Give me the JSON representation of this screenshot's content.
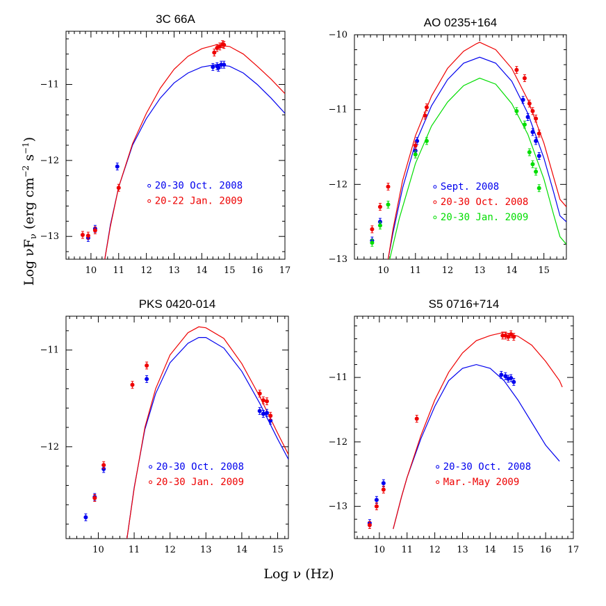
{
  "colors": {
    "blue": "#0000ee",
    "red": "#ee0000",
    "green": "#00dd00"
  },
  "figure": {
    "xlabel_parts": [
      "Log ",
      "ν",
      " (Hz)"
    ],
    "ylabel_parts": [
      "Log ",
      "ν",
      "F",
      "ν",
      " (erg cm",
      "−2",
      " s",
      "−1",
      ")"
    ]
  },
  "chart_data": [
    {
      "type": "scatter",
      "title": "3C 66A",
      "xlim": [
        9.1,
        17
      ],
      "ylim": [
        -13.3,
        -10.3
      ],
      "xticks": [
        10,
        11,
        12,
        13,
        14,
        15,
        16,
        17
      ],
      "yticks": [
        -13,
        -12,
        -11
      ],
      "legend": [
        {
          "label": "20-30 Oct. 2008",
          "color": "blue"
        },
        {
          "label": "20-22 Jan. 2009",
          "color": "red"
        }
      ],
      "series": [
        {
          "color": "blue",
          "points": [
            [
              9.9,
              -13.02
            ],
            [
              10.15,
              -12.9
            ],
            [
              10.95,
              -12.08
            ],
            [
              14.4,
              -10.77
            ],
            [
              14.55,
              -10.76
            ],
            [
              14.6,
              -10.78
            ],
            [
              14.7,
              -10.74
            ],
            [
              14.8,
              -10.74
            ]
          ]
        },
        {
          "color": "red",
          "points": [
            [
              9.7,
              -12.98
            ],
            [
              9.9,
              -12.99
            ],
            [
              10.15,
              -12.92
            ],
            [
              11.0,
              -12.36
            ],
            [
              14.45,
              -10.58
            ],
            [
              14.55,
              -10.52
            ],
            [
              14.65,
              -10.5
            ],
            [
              14.75,
              -10.47
            ],
            [
              14.8,
              -10.48
            ]
          ]
        }
      ],
      "models": [
        {
          "color": "blue",
          "points": [
            [
              10.5,
              -13.3
            ],
            [
              10.7,
              -12.85
            ],
            [
              11.0,
              -12.35
            ],
            [
              11.5,
              -11.8
            ],
            [
              12.0,
              -11.45
            ],
            [
              12.5,
              -11.18
            ],
            [
              13.0,
              -10.98
            ],
            [
              13.5,
              -10.85
            ],
            [
              14.0,
              -10.77
            ],
            [
              14.5,
              -10.74
            ],
            [
              15.0,
              -10.76
            ],
            [
              15.5,
              -10.85
            ],
            [
              16.0,
              -11.0
            ],
            [
              16.5,
              -11.18
            ],
            [
              17.0,
              -11.38
            ]
          ]
        },
        {
          "color": "red",
          "points": [
            [
              10.5,
              -13.3
            ],
            [
              10.7,
              -12.87
            ],
            [
              11.0,
              -12.35
            ],
            [
              11.5,
              -11.78
            ],
            [
              12.0,
              -11.38
            ],
            [
              12.5,
              -11.05
            ],
            [
              13.0,
              -10.8
            ],
            [
              13.5,
              -10.63
            ],
            [
              14.0,
              -10.53
            ],
            [
              14.5,
              -10.48
            ],
            [
              15.0,
              -10.5
            ],
            [
              15.5,
              -10.6
            ],
            [
              16.0,
              -10.76
            ],
            [
              16.5,
              -10.93
            ],
            [
              17.0,
              -11.12
            ]
          ]
        }
      ]
    },
    {
      "type": "scatter",
      "title": "AO 0235+164",
      "xlim": [
        9.1,
        15.7
      ],
      "ylim": [
        -13,
        -10
      ],
      "xticks": [
        10,
        11,
        12,
        13,
        14,
        15
      ],
      "yticks": [
        -13,
        -12,
        -11,
        -10
      ],
      "legend": [
        {
          "label": "Sept. 2008",
          "color": "blue"
        },
        {
          "label": "20-30 Oct. 2008",
          "color": "red"
        },
        {
          "label": "20-30 Jan. 2009",
          "color": "green"
        }
      ],
      "series": [
        {
          "color": "blue",
          "points": [
            [
              9.65,
              -12.75
            ],
            [
              9.9,
              -12.5
            ],
            [
              11.0,
              -11.55
            ],
            [
              11.05,
              -11.42
            ],
            [
              14.35,
              -10.87
            ],
            [
              14.5,
              -11.1
            ],
            [
              14.65,
              -11.3
            ],
            [
              14.75,
              -11.42
            ],
            [
              14.85,
              -11.62
            ]
          ]
        },
        {
          "color": "red",
          "points": [
            [
              9.65,
              -12.6
            ],
            [
              9.9,
              -12.3
            ],
            [
              10.15,
              -12.03
            ],
            [
              11.0,
              -11.48
            ],
            [
              11.3,
              -11.08
            ],
            [
              11.35,
              -10.97
            ],
            [
              14.15,
              -10.47
            ],
            [
              14.4,
              -10.58
            ],
            [
              14.55,
              -10.92
            ],
            [
              14.65,
              -11.02
            ],
            [
              14.75,
              -11.12
            ],
            [
              14.85,
              -11.32
            ]
          ]
        },
        {
          "color": "green",
          "points": [
            [
              9.65,
              -12.78
            ],
            [
              9.9,
              -12.55
            ],
            [
              10.15,
              -12.27
            ],
            [
              11.0,
              -11.6
            ],
            [
              11.35,
              -11.42
            ],
            [
              14.15,
              -11.02
            ],
            [
              14.4,
              -11.2
            ],
            [
              14.55,
              -11.57
            ],
            [
              14.65,
              -11.73
            ],
            [
              14.75,
              -11.83
            ],
            [
              14.85,
              -12.05
            ]
          ]
        }
      ],
      "models": [
        {
          "color": "blue",
          "points": [
            [
              10.15,
              -13.0
            ],
            [
              10.3,
              -12.65
            ],
            [
              10.6,
              -12.05
            ],
            [
              11.0,
              -11.45
            ],
            [
              11.5,
              -10.95
            ],
            [
              12.0,
              -10.6
            ],
            [
              12.5,
              -10.38
            ],
            [
              13.0,
              -10.3
            ],
            [
              13.5,
              -10.38
            ],
            [
              14.0,
              -10.62
            ],
            [
              14.5,
              -11.05
            ],
            [
              15.0,
              -11.65
            ],
            [
              15.3,
              -12.1
            ],
            [
              15.5,
              -12.42
            ],
            [
              15.7,
              -12.5
            ]
          ]
        },
        {
          "color": "red",
          "points": [
            [
              10.15,
              -13.0
            ],
            [
              10.3,
              -12.6
            ],
            [
              10.6,
              -11.95
            ],
            [
              11.0,
              -11.35
            ],
            [
              11.5,
              -10.82
            ],
            [
              12.0,
              -10.45
            ],
            [
              12.5,
              -10.22
            ],
            [
              12.9,
              -10.12
            ],
            [
              13.0,
              -10.1
            ],
            [
              13.5,
              -10.2
            ],
            [
              14.0,
              -10.45
            ],
            [
              14.5,
              -10.87
            ],
            [
              15.0,
              -11.45
            ],
            [
              15.3,
              -11.9
            ],
            [
              15.5,
              -12.2
            ],
            [
              15.7,
              -12.3
            ]
          ]
        },
        {
          "color": "green",
          "points": [
            [
              10.2,
              -13.0
            ],
            [
              10.5,
              -12.45
            ],
            [
              11.0,
              -11.72
            ],
            [
              11.5,
              -11.22
            ],
            [
              12.0,
              -10.9
            ],
            [
              12.5,
              -10.68
            ],
            [
              13.0,
              -10.58
            ],
            [
              13.5,
              -10.66
            ],
            [
              14.0,
              -10.92
            ],
            [
              14.5,
              -11.33
            ],
            [
              15.0,
              -11.93
            ],
            [
              15.3,
              -12.4
            ],
            [
              15.5,
              -12.7
            ],
            [
              15.7,
              -12.8
            ]
          ]
        }
      ]
    },
    {
      "type": "scatter",
      "title": "PKS 0420-014",
      "xlim": [
        9.1,
        15.3
      ],
      "ylim": [
        -12.95,
        -10.65
      ],
      "xticks": [
        10,
        11,
        12,
        13,
        14,
        15
      ],
      "yticks": [
        -12,
        -11
      ],
      "legend": [
        {
          "label": "20-30 Oct. 2008",
          "color": "blue"
        },
        {
          "label": "20-30 Jan. 2009",
          "color": "red"
        }
      ],
      "series": [
        {
          "color": "blue",
          "points": [
            [
              9.65,
              -12.73
            ],
            [
              9.9,
              -12.52
            ],
            [
              10.15,
              -12.23
            ],
            [
              11.35,
              -11.3
            ],
            [
              14.5,
              -11.63
            ],
            [
              14.6,
              -11.66
            ],
            [
              14.7,
              -11.65
            ],
            [
              14.8,
              -11.73
            ]
          ]
        },
        {
          "color": "red",
          "points": [
            [
              9.9,
              -12.53
            ],
            [
              10.15,
              -12.19
            ],
            [
              10.95,
              -11.36
            ],
            [
              11.35,
              -11.16
            ],
            [
              14.5,
              -11.45
            ],
            [
              14.6,
              -11.52
            ],
            [
              14.7,
              -11.53
            ],
            [
              14.8,
              -11.68
            ]
          ]
        }
      ],
      "models": [
        {
          "color": "blue",
          "points": [
            [
              10.8,
              -12.95
            ],
            [
              11.0,
              -12.42
            ],
            [
              11.3,
              -11.82
            ],
            [
              11.6,
              -11.45
            ],
            [
              12.0,
              -11.13
            ],
            [
              12.5,
              -10.93
            ],
            [
              12.8,
              -10.87
            ],
            [
              13.0,
              -10.87
            ],
            [
              13.5,
              -10.98
            ],
            [
              14.0,
              -11.22
            ],
            [
              14.5,
              -11.55
            ],
            [
              15.0,
              -11.92
            ],
            [
              15.3,
              -12.13
            ]
          ]
        },
        {
          "color": "red",
          "points": [
            [
              10.8,
              -12.95
            ],
            [
              11.0,
              -12.43
            ],
            [
              11.3,
              -11.8
            ],
            [
              11.6,
              -11.4
            ],
            [
              12.0,
              -11.05
            ],
            [
              12.5,
              -10.82
            ],
            [
              12.8,
              -10.76
            ],
            [
              13.0,
              -10.77
            ],
            [
              13.5,
              -10.88
            ],
            [
              14.0,
              -11.14
            ],
            [
              14.5,
              -11.48
            ],
            [
              15.0,
              -11.86
            ],
            [
              15.3,
              -12.08
            ]
          ]
        }
      ]
    },
    {
      "type": "scatter",
      "title": "S5 0716+714",
      "xlim": [
        9.1,
        17
      ],
      "ylim": [
        -13.5,
        -10.05
      ],
      "xticks": [
        10,
        11,
        12,
        13,
        14,
        15,
        16,
        17
      ],
      "yticks": [
        -13,
        -12,
        -11
      ],
      "legend": [
        {
          "label": "20-30 Oct. 2008",
          "color": "blue"
        },
        {
          "label": "Mar.-May 2009",
          "color": "red"
        }
      ],
      "series": [
        {
          "color": "blue",
          "points": [
            [
              9.65,
              -13.26
            ],
            [
              9.9,
              -12.9
            ],
            [
              10.15,
              -12.64
            ],
            [
              14.4,
              -10.96
            ],
            [
              14.55,
              -10.98
            ],
            [
              14.65,
              -11.02
            ],
            [
              14.75,
              -11.01
            ],
            [
              14.85,
              -11.07
            ]
          ]
        },
        {
          "color": "red",
          "points": [
            [
              9.65,
              -13.29
            ],
            [
              9.9,
              -13.0
            ],
            [
              10.15,
              -12.74
            ],
            [
              11.35,
              -11.64
            ],
            [
              14.45,
              -10.35
            ],
            [
              14.55,
              -10.35
            ],
            [
              14.65,
              -10.37
            ],
            [
              14.75,
              -10.33
            ],
            [
              14.85,
              -10.37
            ]
          ]
        }
      ],
      "models": [
        {
          "color": "blue",
          "points": [
            [
              10.5,
              -13.35
            ],
            [
              10.8,
              -12.85
            ],
            [
              11.0,
              -12.55
            ],
            [
              11.5,
              -11.95
            ],
            [
              12.0,
              -11.45
            ],
            [
              12.5,
              -11.05
            ],
            [
              13.0,
              -10.86
            ],
            [
              13.5,
              -10.8
            ],
            [
              14.0,
              -10.86
            ],
            [
              14.5,
              -11.05
            ],
            [
              15.0,
              -11.35
            ],
            [
              15.5,
              -11.7
            ],
            [
              16.0,
              -12.05
            ],
            [
              16.5,
              -12.3
            ]
          ]
        },
        {
          "color": "red",
          "points": [
            [
              10.5,
              -13.35
            ],
            [
              10.8,
              -12.85
            ],
            [
              11.0,
              -12.55
            ],
            [
              11.5,
              -11.9
            ],
            [
              12.0,
              -11.35
            ],
            [
              12.5,
              -10.92
            ],
            [
              13.0,
              -10.62
            ],
            [
              13.5,
              -10.43
            ],
            [
              14.0,
              -10.35
            ],
            [
              14.5,
              -10.3
            ],
            [
              15.0,
              -10.36
            ],
            [
              15.5,
              -10.5
            ],
            [
              16.0,
              -10.75
            ],
            [
              16.5,
              -11.05
            ],
            [
              16.6,
              -11.15
            ]
          ]
        }
      ]
    }
  ]
}
